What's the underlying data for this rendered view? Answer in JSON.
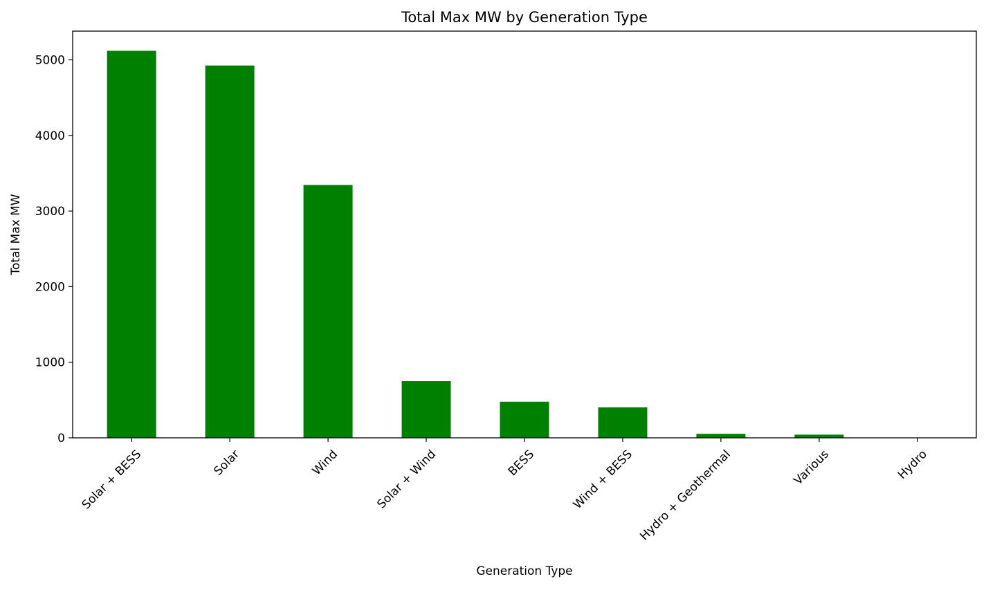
{
  "chart_data": {
    "type": "bar",
    "title": "Total Max MW by Generation Type",
    "xlabel": "Generation Type",
    "ylabel": "Total Max MW",
    "categories": [
      "Solar + BESS",
      "Solar",
      "Wind",
      "Solar + Wind",
      "BESS",
      "Wind + BESS",
      "Hydro + Geothermal",
      "Various",
      "Hydro"
    ],
    "values": [
      5120,
      4925,
      3345,
      750,
      478,
      403,
      53,
      42,
      3
    ],
    "yticks": [
      0,
      1000,
      2000,
      3000,
      4000,
      5000
    ],
    "ylim": [
      0,
      5380
    ],
    "bar_color": "#008000",
    "grid": false,
    "legend": "none"
  }
}
